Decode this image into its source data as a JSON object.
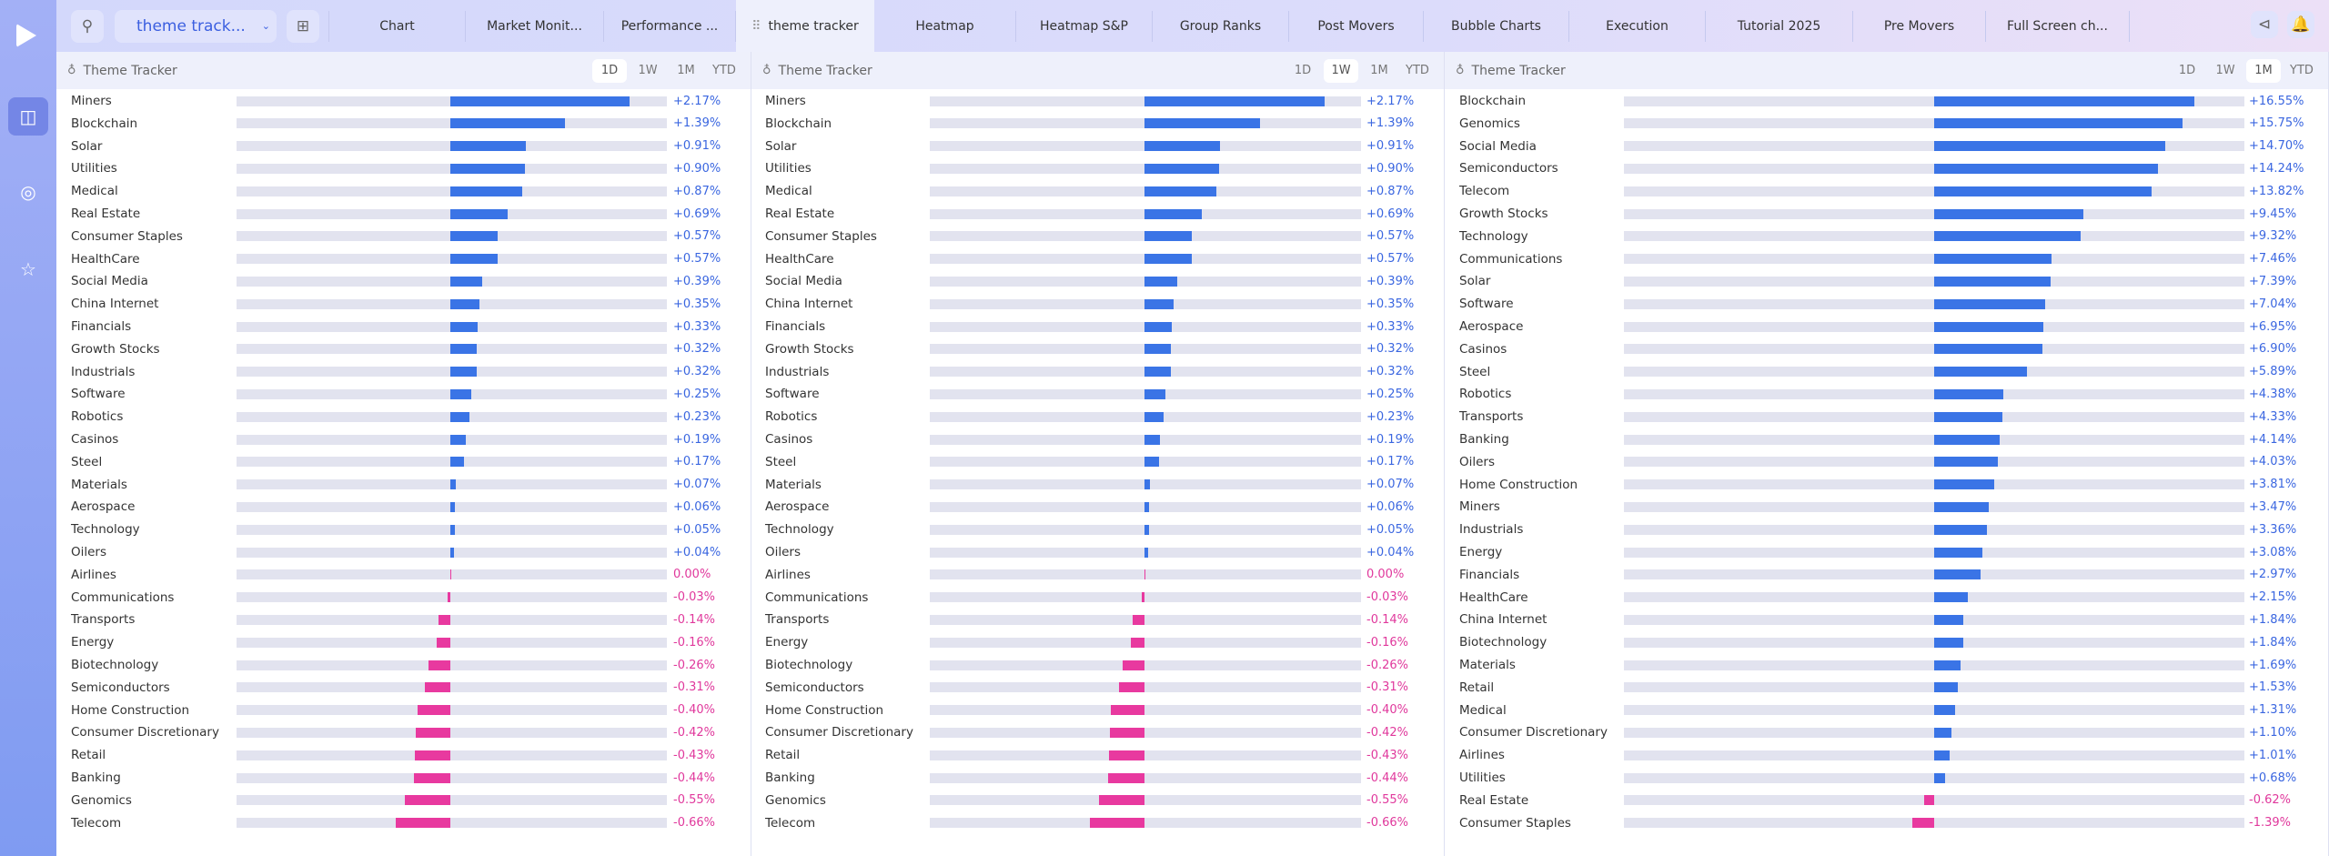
{
  "colors": {
    "positive": "#3a74e6",
    "negative": "#e8399f",
    "track": "#e2e3ef"
  },
  "sidebar": {
    "icons": [
      "logo-icon",
      "layout-icon",
      "radar-icon",
      "star-icon"
    ]
  },
  "topbar": {
    "dropdown_label": "theme track...",
    "tabs": [
      "Chart",
      "Market Monit...",
      "Performance ...",
      "theme tracker",
      "Heatmap",
      "Heatmap S&P",
      "Group Ranks",
      "Post Movers",
      "Bubble Charts",
      "Execution",
      "Tutorial 2025",
      "Pre Movers",
      "Full Screen ch..."
    ],
    "active_tab": 3
  },
  "panels": [
    {
      "title": "Theme Tracker",
      "periods": [
        "1D",
        "1W",
        "1M",
        "YTD"
      ],
      "active_period": 0,
      "rows": [
        [
          "Miners",
          2.17,
          "+2.17%"
        ],
        [
          "Blockchain",
          1.39,
          "+1.39%"
        ],
        [
          "Solar",
          0.91,
          "+0.91%"
        ],
        [
          "Utilities",
          0.9,
          "+0.90%"
        ],
        [
          "Medical",
          0.87,
          "+0.87%"
        ],
        [
          "Real Estate",
          0.69,
          "+0.69%"
        ],
        [
          "Consumer Staples",
          0.57,
          "+0.57%"
        ],
        [
          "HealthCare",
          0.57,
          "+0.57%"
        ],
        [
          "Social Media",
          0.39,
          "+0.39%"
        ],
        [
          "China Internet",
          0.35,
          "+0.35%"
        ],
        [
          "Financials",
          0.33,
          "+0.33%"
        ],
        [
          "Growth Stocks",
          0.32,
          "+0.32%"
        ],
        [
          "Industrials",
          0.32,
          "+0.32%"
        ],
        [
          "Software",
          0.25,
          "+0.25%"
        ],
        [
          "Robotics",
          0.23,
          "+0.23%"
        ],
        [
          "Casinos",
          0.19,
          "+0.19%"
        ],
        [
          "Steel",
          0.17,
          "+0.17%"
        ],
        [
          "Materials",
          0.07,
          "+0.07%"
        ],
        [
          "Aerospace",
          0.06,
          "+0.06%"
        ],
        [
          "Technology",
          0.05,
          "+0.05%"
        ],
        [
          "Oilers",
          0.04,
          "+0.04%"
        ],
        [
          "Airlines",
          0.0,
          "0.00%"
        ],
        [
          "Communications",
          -0.03,
          "-0.03%"
        ],
        [
          "Transports",
          -0.14,
          "-0.14%"
        ],
        [
          "Energy",
          -0.16,
          "-0.16%"
        ],
        [
          "Biotechnology",
          -0.26,
          "-0.26%"
        ],
        [
          "Semiconductors",
          -0.31,
          "-0.31%"
        ],
        [
          "Home Construction",
          -0.4,
          "-0.40%"
        ],
        [
          "Consumer Discretionary",
          -0.42,
          "-0.42%"
        ],
        [
          "Retail",
          -0.43,
          "-0.43%"
        ],
        [
          "Banking",
          -0.44,
          "-0.44%"
        ],
        [
          "Genomics",
          -0.55,
          "-0.55%"
        ],
        [
          "Telecom",
          -0.66,
          "-0.66%"
        ]
      ]
    },
    {
      "title": "Theme Tracker",
      "periods": [
        "1D",
        "1W",
        "1M",
        "YTD"
      ],
      "active_period": 1,
      "rows": [
        [
          "Miners",
          2.17,
          "+2.17%"
        ],
        [
          "Blockchain",
          1.39,
          "+1.39%"
        ],
        [
          "Solar",
          0.91,
          "+0.91%"
        ],
        [
          "Utilities",
          0.9,
          "+0.90%"
        ],
        [
          "Medical",
          0.87,
          "+0.87%"
        ],
        [
          "Real Estate",
          0.69,
          "+0.69%"
        ],
        [
          "Consumer Staples",
          0.57,
          "+0.57%"
        ],
        [
          "HealthCare",
          0.57,
          "+0.57%"
        ],
        [
          "Social Media",
          0.39,
          "+0.39%"
        ],
        [
          "China Internet",
          0.35,
          "+0.35%"
        ],
        [
          "Financials",
          0.33,
          "+0.33%"
        ],
        [
          "Growth Stocks",
          0.32,
          "+0.32%"
        ],
        [
          "Industrials",
          0.32,
          "+0.32%"
        ],
        [
          "Software",
          0.25,
          "+0.25%"
        ],
        [
          "Robotics",
          0.23,
          "+0.23%"
        ],
        [
          "Casinos",
          0.19,
          "+0.19%"
        ],
        [
          "Steel",
          0.17,
          "+0.17%"
        ],
        [
          "Materials",
          0.07,
          "+0.07%"
        ],
        [
          "Aerospace",
          0.06,
          "+0.06%"
        ],
        [
          "Technology",
          0.05,
          "+0.05%"
        ],
        [
          "Oilers",
          0.04,
          "+0.04%"
        ],
        [
          "Airlines",
          0.0,
          "0.00%"
        ],
        [
          "Communications",
          -0.03,
          "-0.03%"
        ],
        [
          "Transports",
          -0.14,
          "-0.14%"
        ],
        [
          "Energy",
          -0.16,
          "-0.16%"
        ],
        [
          "Biotechnology",
          -0.26,
          "-0.26%"
        ],
        [
          "Semiconductors",
          -0.31,
          "-0.31%"
        ],
        [
          "Home Construction",
          -0.4,
          "-0.40%"
        ],
        [
          "Consumer Discretionary",
          -0.42,
          "-0.42%"
        ],
        [
          "Retail",
          -0.43,
          "-0.43%"
        ],
        [
          "Banking",
          -0.44,
          "-0.44%"
        ],
        [
          "Genomics",
          -0.55,
          "-0.55%"
        ],
        [
          "Telecom",
          -0.66,
          "-0.66%"
        ]
      ]
    },
    {
      "title": "Theme Tracker",
      "periods": [
        "1D",
        "1W",
        "1M",
        "YTD"
      ],
      "active_period": 2,
      "rows": [
        [
          "Blockchain",
          16.55,
          "+16.55%"
        ],
        [
          "Genomics",
          15.75,
          "+15.75%"
        ],
        [
          "Social Media",
          14.7,
          "+14.70%"
        ],
        [
          "Semiconductors",
          14.24,
          "+14.24%"
        ],
        [
          "Telecom",
          13.82,
          "+13.82%"
        ],
        [
          "Growth Stocks",
          9.45,
          "+9.45%"
        ],
        [
          "Technology",
          9.32,
          "+9.32%"
        ],
        [
          "Communications",
          7.46,
          "+7.46%"
        ],
        [
          "Solar",
          7.39,
          "+7.39%"
        ],
        [
          "Software",
          7.04,
          "+7.04%"
        ],
        [
          "Aerospace",
          6.95,
          "+6.95%"
        ],
        [
          "Casinos",
          6.9,
          "+6.90%"
        ],
        [
          "Steel",
          5.89,
          "+5.89%"
        ],
        [
          "Robotics",
          4.38,
          "+4.38%"
        ],
        [
          "Transports",
          4.33,
          "+4.33%"
        ],
        [
          "Banking",
          4.14,
          "+4.14%"
        ],
        [
          "Oilers",
          4.03,
          "+4.03%"
        ],
        [
          "Home Construction",
          3.81,
          "+3.81%"
        ],
        [
          "Miners",
          3.47,
          "+3.47%"
        ],
        [
          "Industrials",
          3.36,
          "+3.36%"
        ],
        [
          "Energy",
          3.08,
          "+3.08%"
        ],
        [
          "Financials",
          2.97,
          "+2.97%"
        ],
        [
          "HealthCare",
          2.15,
          "+2.15%"
        ],
        [
          "China Internet",
          1.84,
          "+1.84%"
        ],
        [
          "Biotechnology",
          1.84,
          "+1.84%"
        ],
        [
          "Materials",
          1.69,
          "+1.69%"
        ],
        [
          "Retail",
          1.53,
          "+1.53%"
        ],
        [
          "Medical",
          1.31,
          "+1.31%"
        ],
        [
          "Consumer Discretionary",
          1.1,
          "+1.10%"
        ],
        [
          "Airlines",
          1.01,
          "+1.01%"
        ],
        [
          "Utilities",
          0.68,
          "+0.68%"
        ],
        [
          "Real Estate",
          -0.62,
          "-0.62%"
        ],
        [
          "Consumer Staples",
          -1.39,
          "-1.39%"
        ]
      ]
    }
  ]
}
